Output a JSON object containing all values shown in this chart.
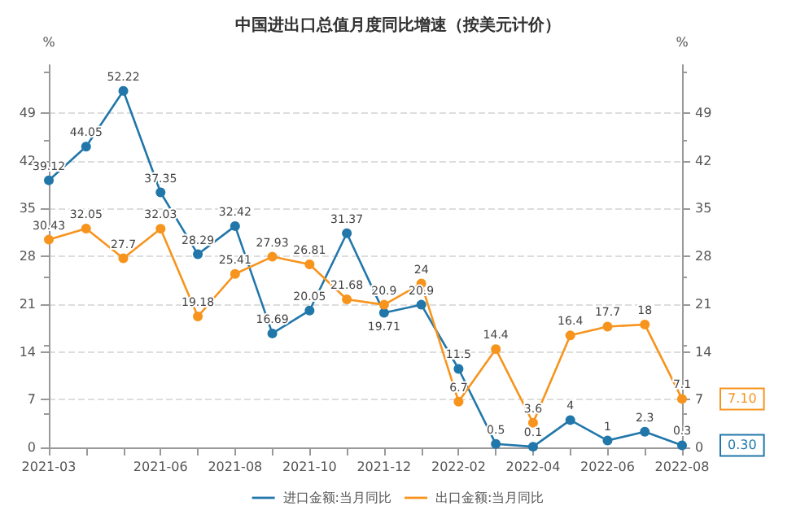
{
  "chart_data": {
    "type": "line",
    "title": "中国进出口总值月度同比增速（按美元计价）",
    "ylabel": "%",
    "y2label": "%",
    "categories": [
      "2021-03",
      null,
      null,
      "2021-06",
      null,
      "2021-08",
      null,
      "2021-10",
      null,
      "2021-12",
      null,
      "2022-02",
      null,
      "2022-04",
      null,
      "2022-06",
      null,
      "2022-08"
    ],
    "series": [
      {
        "name": "进口金额:当月同比",
        "color": "#2277aa",
        "values": [
          39.12,
          44.05,
          52.22,
          37.35,
          28.29,
          32.42,
          16.69,
          20.05,
          31.37,
          19.71,
          20.9,
          11.5,
          0.5,
          0.1,
          4,
          1,
          2.3,
          0.3
        ]
      },
      {
        "name": "出口金额:当月同比",
        "color": "#f7941d",
        "values": [
          30.43,
          32.05,
          27.7,
          32.03,
          19.18,
          25.41,
          27.93,
          26.81,
          21.68,
          20.9,
          24,
          6.7,
          14.4,
          3.6,
          16.4,
          17.7,
          18,
          7.1
        ]
      }
    ],
    "annotations": [
      "0.30",
      "7.10"
    ],
    "ylim": [
      0,
      56
    ],
    "yticks": [
      0,
      7,
      14,
      21,
      28,
      35,
      42,
      49
    ],
    "y2lim": [
      0,
      56
    ],
    "y2ticks": [
      0,
      7,
      14,
      21,
      28,
      35,
      42,
      49
    ],
    "data_labels": true,
    "marker": "circle",
    "line_style": "solid",
    "grid": "y",
    "legend": "bottom"
  }
}
